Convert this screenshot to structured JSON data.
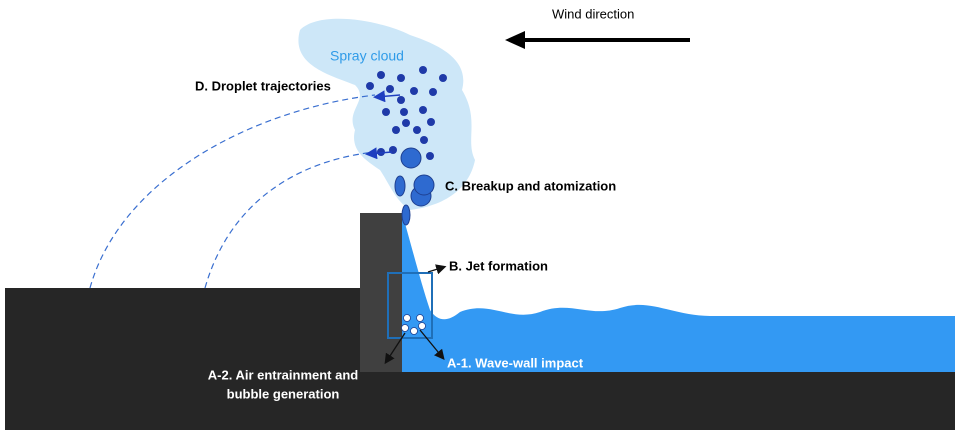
{
  "wind_label": "Wind direction",
  "spray_label": "Spray cloud",
  "labels": {
    "D": "D. Droplet trajectories",
    "C": "C. Breakup and atomization",
    "B": "B. Jet formation",
    "A1": "A-1. Wave-wall impact",
    "A2": [
      "A-2. Air entrainment and",
      "bubble generation"
    ]
  }
}
